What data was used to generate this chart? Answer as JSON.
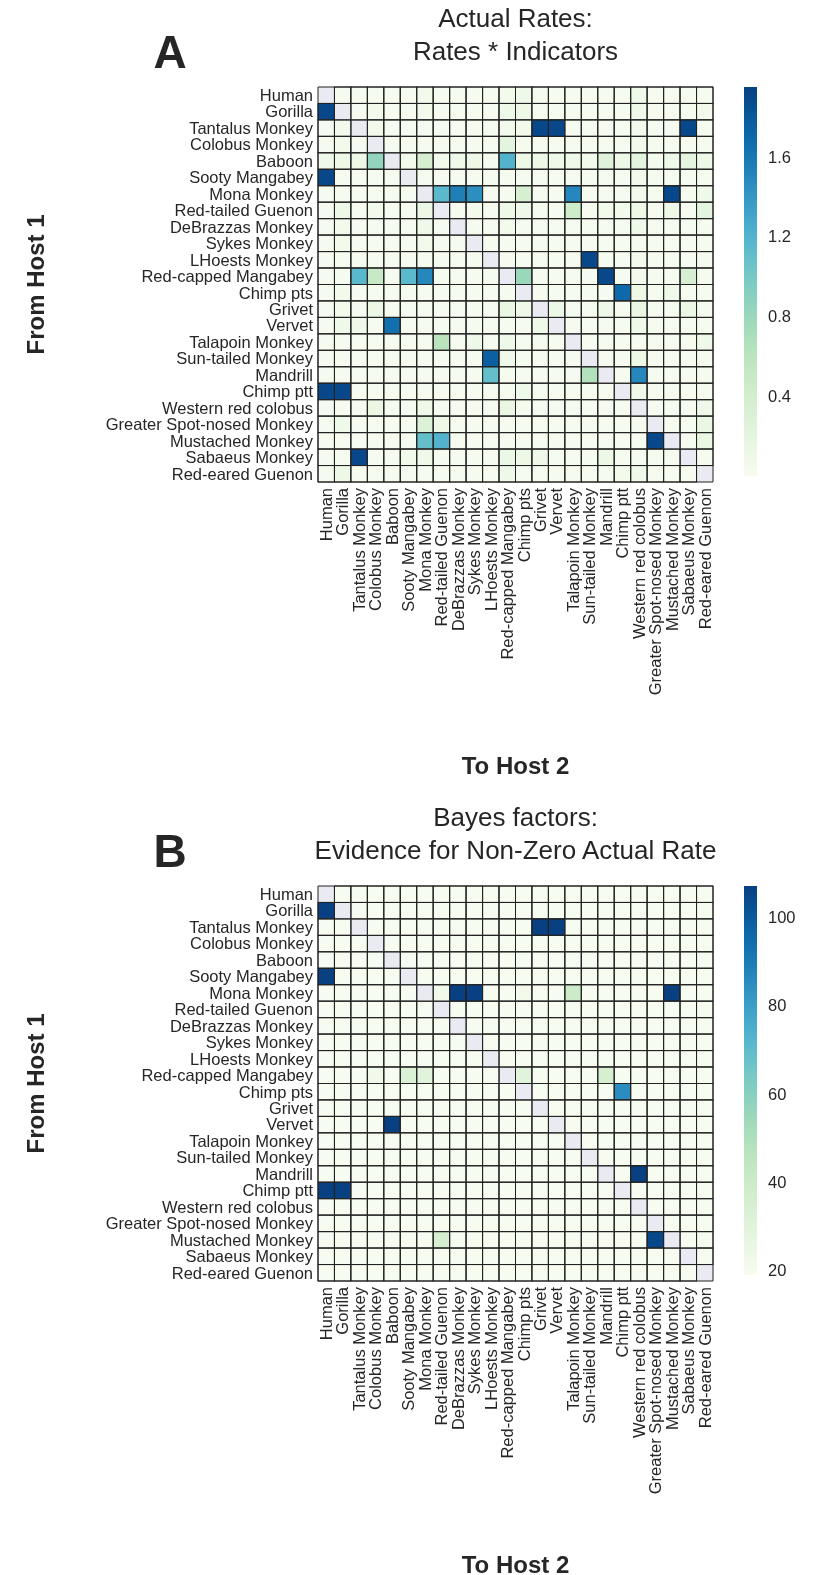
{
  "chart_data": [
    {
      "type": "heatmap",
      "title": "Actual Rates:\nRates * Indicators",
      "xlabel": "To Host 2",
      "ylabel": "From Host 1",
      "annotations": [
        "A"
      ],
      "categories": [
        "Human",
        "Gorilla",
        "Tantalus Monkey",
        "Colobus Monkey",
        "Baboon",
        "Sooty Mangabey",
        "Mona Monkey",
        "Red-tailed Guenon",
        "DeBrazzas Monkey",
        "Sykes Monkey",
        "LHoests Monkey",
        "Red-capped Mangabey",
        "Chimp pts",
        "Grivet",
        "Vervet",
        "Talapoin Monkey",
        "Sun-tailed Monkey",
        "Mandrill",
        "Chimp ptt",
        "Western red colobus",
        "Greater Spot-nosed Monkey",
        "Mustached Monkey",
        "Sabaeus Monkey",
        "Red-eared Guenon"
      ],
      "y_categories": [
        "Human",
        "Gorilla",
        "Tantalus Monkey",
        "Colobus Monkey",
        "Baboon",
        "Sooty Mangabey",
        "Mona Monkey",
        "Red-tailed Guenon",
        "DeBrazzas Monkey",
        "Sykes Monkey",
        "LHoests Monkey",
        "Red-capped Mangabey",
        "Chimp pts",
        "Grivet",
        "Vervet",
        "Talapoin Monkey",
        "Sun-tailed Monkey",
        "Mandrill",
        "Chimp ptt",
        "Western red colobus",
        "Greater Spot-nosed Monkey",
        "Mustached Monkey",
        "Sabaeus Monkey",
        "Red-eared Guenon"
      ],
      "clim": [
        0,
        1.95
      ],
      "cticks": [
        0.4,
        0.8,
        1.2,
        1.6
      ],
      "cells": [
        [
          null,
          0.02,
          0.02,
          0.02,
          0.02,
          0.02,
          0.05,
          0.02,
          0.02,
          0.02,
          0.02,
          0.05,
          0.08,
          0.02,
          0.02,
          0.02,
          0.02,
          0.02,
          0.02,
          0.08,
          0.02,
          0.02,
          0.02,
          0.02
        ],
        [
          1.9,
          null,
          0.02,
          0.05,
          0.02,
          0.02,
          0.05,
          0.02,
          0.02,
          0.02,
          0.02,
          0.08,
          0.1,
          0.02,
          0.02,
          0.02,
          0.02,
          0.02,
          0.02,
          0.08,
          0.02,
          0.02,
          0.02,
          0.05
        ],
        [
          0.02,
          0.05,
          null,
          0.05,
          0.02,
          0.02,
          0.02,
          0.02,
          0.02,
          0.02,
          0.02,
          0.05,
          0.05,
          1.9,
          1.9,
          0.02,
          0.02,
          0.02,
          0.02,
          0.05,
          0.02,
          0.02,
          1.9,
          0.02
        ],
        [
          0.02,
          0.05,
          0.02,
          null,
          0.02,
          0.02,
          0.02,
          0.02,
          0.02,
          0.02,
          0.02,
          0.2,
          0.02,
          0.02,
          0.02,
          0.02,
          0.02,
          0.02,
          0.02,
          0.05,
          0.02,
          0.02,
          0.02,
          0.02
        ],
        [
          0.08,
          0.1,
          0.1,
          0.85,
          null,
          0.05,
          0.35,
          0.05,
          0.08,
          0.1,
          0.02,
          1.2,
          0.1,
          0.1,
          0.08,
          0.08,
          0.05,
          0.25,
          0.1,
          0.2,
          0.02,
          0.08,
          0.2,
          0.1
        ],
        [
          1.9,
          0.02,
          0.02,
          0.02,
          0.02,
          null,
          0.02,
          0.02,
          0.02,
          0.02,
          0.02,
          0.02,
          0.02,
          0.02,
          0.02,
          0.02,
          0.02,
          0.02,
          0.02,
          0.05,
          0.02,
          0.02,
          0.02,
          0.02
        ],
        [
          0.02,
          0.02,
          0.02,
          0.02,
          0.02,
          0.02,
          null,
          1.15,
          1.55,
          1.45,
          0.02,
          0.02,
          0.35,
          0.02,
          0.02,
          1.5,
          0.02,
          0.02,
          0.02,
          0.05,
          0.02,
          1.9,
          0.02,
          0.08
        ],
        [
          0.02,
          0.1,
          0.02,
          0.05,
          0.02,
          0.02,
          0.12,
          null,
          0.02,
          0.05,
          0.02,
          0.1,
          0.08,
          0.02,
          0.02,
          0.45,
          0.02,
          0.05,
          0.05,
          0.1,
          0.02,
          0.1,
          0.02,
          0.2
        ],
        [
          0.02,
          0.05,
          0.02,
          0.02,
          0.02,
          0.02,
          0.08,
          0.02,
          null,
          0.02,
          0.02,
          0.05,
          0.02,
          0.02,
          0.02,
          0.02,
          0.02,
          0.02,
          0.02,
          0.08,
          0.02,
          0.02,
          0.02,
          0.02
        ],
        [
          0.02,
          0.05,
          0.02,
          0.02,
          0.02,
          0.02,
          0.05,
          0.02,
          0.02,
          null,
          0.02,
          0.02,
          0.02,
          0.02,
          0.02,
          0.02,
          0.02,
          0.02,
          0.02,
          0.02,
          0.02,
          0.02,
          0.02,
          0.02
        ],
        [
          0.02,
          0.02,
          0.02,
          0.02,
          0.02,
          0.02,
          0.02,
          0.02,
          0.02,
          0.02,
          null,
          0.02,
          0.02,
          0.02,
          0.02,
          0.02,
          1.9,
          0.02,
          0.02,
          0.05,
          0.02,
          0.02,
          0.02,
          0.02
        ],
        [
          0.02,
          0.02,
          1.15,
          0.5,
          0.02,
          1.15,
          1.5,
          0.02,
          0.02,
          0.02,
          0.02,
          null,
          0.8,
          0.02,
          0.02,
          0.02,
          0.02,
          1.9,
          0.02,
          0.05,
          0.02,
          0.02,
          0.35,
          0.02
        ],
        [
          0.02,
          0.05,
          0.02,
          0.02,
          0.02,
          0.02,
          0.02,
          0.02,
          0.02,
          0.02,
          0.02,
          0.02,
          null,
          0.02,
          0.02,
          0.02,
          0.02,
          0.02,
          1.7,
          0.1,
          0.02,
          0.08,
          0.02,
          0.02
        ],
        [
          0.02,
          0.05,
          0.02,
          0.12,
          0.02,
          0.02,
          0.02,
          0.02,
          0.02,
          0.02,
          0.02,
          0.15,
          0.08,
          null,
          0.12,
          0.02,
          0.02,
          0.08,
          0.02,
          0.15,
          0.02,
          0.02,
          0.12,
          0.02
        ],
        [
          0.02,
          0.08,
          0.08,
          0.02,
          1.65,
          0.02,
          0.02,
          0.02,
          0.02,
          0.02,
          0.02,
          0.02,
          0.02,
          0.08,
          null,
          0.02,
          0.02,
          0.02,
          0.02,
          0.08,
          0.02,
          0.02,
          0.02,
          0.02
        ],
        [
          0.02,
          0.02,
          0.02,
          0.02,
          0.02,
          0.02,
          0.02,
          0.6,
          0.02,
          0.08,
          0.02,
          0.08,
          0.02,
          0.02,
          0.02,
          null,
          0.02,
          0.02,
          0.02,
          0.02,
          0.02,
          0.02,
          0.02,
          0.08
        ],
        [
          0.02,
          0.02,
          0.02,
          0.02,
          0.02,
          0.02,
          0.02,
          0.02,
          0.02,
          0.02,
          1.75,
          0.08,
          0.02,
          0.02,
          0.02,
          0.02,
          null,
          0.02,
          0.02,
          0.1,
          0.02,
          0.02,
          0.02,
          0.02
        ],
        [
          0.02,
          0.02,
          0.02,
          0.02,
          0.02,
          0.02,
          0.02,
          0.02,
          0.02,
          0.02,
          1.1,
          0.02,
          0.02,
          0.02,
          0.02,
          0.02,
          0.65,
          null,
          0.02,
          1.5,
          0.02,
          0.02,
          0.02,
          0.02
        ],
        [
          1.9,
          1.9,
          0.02,
          0.02,
          0.02,
          0.02,
          0.02,
          0.02,
          0.02,
          0.02,
          0.02,
          0.02,
          0.08,
          0.02,
          0.02,
          0.02,
          0.02,
          0.02,
          null,
          0.08,
          0.02,
          0.02,
          0.02,
          0.02
        ],
        [
          0.02,
          0.02,
          0.02,
          0.15,
          0.02,
          0.02,
          0.08,
          0.02,
          0.02,
          0.02,
          0.02,
          0.15,
          0.02,
          0.02,
          0.02,
          0.02,
          0.02,
          0.02,
          0.02,
          null,
          0.02,
          0.02,
          0.02,
          0.08
        ],
        [
          0.02,
          0.08,
          0.02,
          0.02,
          0.02,
          0.02,
          0.3,
          0.1,
          0.02,
          0.02,
          0.02,
          0.02,
          0.02,
          0.02,
          0.02,
          0.02,
          0.02,
          0.02,
          0.02,
          0.02,
          null,
          0.02,
          0.02,
          0.15
        ],
        [
          0.02,
          0.02,
          0.02,
          0.02,
          0.02,
          0.02,
          1.1,
          1.2,
          0.02,
          0.02,
          0.02,
          0.02,
          0.02,
          0.02,
          0.02,
          0.02,
          0.02,
          0.02,
          0.02,
          0.02,
          1.9,
          null,
          0.02,
          0.15
        ],
        [
          0.02,
          0.02,
          1.9,
          0.02,
          0.02,
          0.05,
          0.08,
          0.02,
          0.02,
          0.02,
          0.02,
          0.12,
          0.1,
          0.08,
          0.02,
          0.02,
          0.02,
          0.1,
          0.02,
          0.02,
          0.02,
          0.02,
          null,
          0.02
        ],
        [
          0.02,
          0.1,
          0.02,
          0.02,
          0.02,
          0.02,
          0.02,
          0.02,
          0.02,
          0.02,
          0.02,
          0.08,
          0.02,
          0.02,
          0.02,
          0.02,
          0.02,
          0.02,
          0.05,
          0.08,
          0.02,
          0.02,
          0.02,
          null
        ]
      ]
    },
    {
      "type": "heatmap",
      "title": "Bayes factors:\nEvidence for Non-Zero Actual Rate",
      "xlabel": "To Host 2",
      "ylabel": "From Host 1",
      "annotations": [
        "B"
      ],
      "categories": [
        "Human",
        "Gorilla",
        "Tantalus Monkey",
        "Colobus Monkey",
        "Baboon",
        "Sooty Mangabey",
        "Mona Monkey",
        "Red-tailed Guenon",
        "DeBrazzas Monkey",
        "Sykes Monkey",
        "LHoests Monkey",
        "Red-capped Mangabey",
        "Chimp pts",
        "Grivet",
        "Vervet",
        "Talapoin Monkey",
        "Sun-tailed Monkey",
        "Mandrill",
        "Chimp ptt",
        "Western red colobus",
        "Greater Spot-nosed Monkey",
        "Mustached Monkey",
        "Sabaeus Monkey",
        "Red-eared Guenon"
      ],
      "y_categories": [
        "Human",
        "Gorilla",
        "Tantalus Monkey",
        "Colobus Monkey",
        "Baboon",
        "Sooty Mangabey",
        "Mona Monkey",
        "Red-tailed Guenon",
        "DeBrazzas Monkey",
        "Sykes Monkey",
        "LHoests Monkey",
        "Red-capped Mangabey",
        "Chimp pts",
        "Grivet",
        "Vervet",
        "Talapoin Monkey",
        "Sun-tailed Monkey",
        "Mandrill",
        "Chimp ptt",
        "Western red colobus",
        "Greater Spot-nosed Monkey",
        "Mustached Monkey",
        "Sabaeus Monkey",
        "Red-eared Guenon"
      ],
      "clim": [
        19,
        107
      ],
      "cticks": [
        20,
        40,
        60,
        80,
        100
      ],
      "cells": [
        [
          null,
          19,
          19,
          19,
          19,
          19,
          19,
          19,
          19,
          19,
          19,
          19,
          19,
          19,
          19,
          19,
          19,
          19,
          19,
          19,
          19,
          19,
          19,
          19
        ],
        [
          107,
          null,
          19,
          19,
          19,
          19,
          19,
          19,
          19,
          19,
          19,
          19,
          19,
          19,
          19,
          19,
          19,
          19,
          19,
          19,
          19,
          19,
          19,
          19
        ],
        [
          19,
          19,
          null,
          19,
          19,
          19,
          19,
          19,
          19,
          19,
          19,
          19,
          19,
          107,
          107,
          19,
          19,
          19,
          19,
          19,
          19,
          19,
          20,
          19
        ],
        [
          19,
          19,
          19,
          null,
          19,
          19,
          19,
          19,
          19,
          19,
          19,
          19,
          19,
          19,
          19,
          19,
          19,
          19,
          19,
          19,
          19,
          19,
          19,
          19
        ],
        [
          19,
          19,
          19,
          19,
          null,
          19,
          19,
          19,
          19,
          19,
          19,
          19,
          19,
          19,
          19,
          19,
          19,
          19,
          19,
          19,
          19,
          19,
          19,
          19
        ],
        [
          107,
          19,
          19,
          19,
          19,
          null,
          19,
          19,
          19,
          19,
          19,
          19,
          19,
          19,
          19,
          19,
          19,
          19,
          19,
          19,
          19,
          19,
          19,
          19
        ],
        [
          19,
          19,
          19,
          19,
          19,
          19,
          null,
          22,
          107,
          107,
          19,
          19,
          21,
          19,
          19,
          40,
          19,
          19,
          19,
          19,
          19,
          107,
          19,
          19
        ],
        [
          19,
          19,
          19,
          19,
          19,
          19,
          19,
          null,
          19,
          19,
          19,
          19,
          19,
          19,
          19,
          19,
          19,
          19,
          19,
          19,
          19,
          19,
          19,
          19
        ],
        [
          19,
          19,
          19,
          19,
          19,
          19,
          19,
          19,
          null,
          19,
          19,
          19,
          19,
          19,
          19,
          19,
          19,
          19,
          19,
          19,
          19,
          19,
          19,
          19
        ],
        [
          19,
          19,
          19,
          19,
          19,
          19,
          19,
          19,
          19,
          null,
          19,
          19,
          19,
          19,
          19,
          19,
          19,
          19,
          19,
          19,
          19,
          19,
          19,
          19
        ],
        [
          19,
          19,
          19,
          19,
          19,
          19,
          19,
          19,
          19,
          19,
          null,
          19,
          19,
          19,
          19,
          19,
          19,
          19,
          19,
          19,
          19,
          19,
          19,
          19
        ],
        [
          19,
          19,
          19,
          22,
          19,
          33,
          30,
          19,
          19,
          19,
          19,
          null,
          30,
          19,
          19,
          19,
          19,
          35,
          19,
          19,
          19,
          19,
          19,
          19
        ],
        [
          19,
          19,
          19,
          19,
          19,
          19,
          19,
          19,
          19,
          19,
          19,
          19,
          null,
          19,
          19,
          19,
          19,
          19,
          85,
          19,
          19,
          19,
          19,
          19
        ],
        [
          19,
          19,
          19,
          19,
          19,
          19,
          19,
          19,
          19,
          19,
          19,
          19,
          19,
          null,
          19,
          19,
          19,
          19,
          19,
          19,
          19,
          19,
          19,
          19
        ],
        [
          19,
          19,
          19,
          19,
          107,
          19,
          19,
          19,
          19,
          19,
          19,
          19,
          19,
          19,
          null,
          19,
          19,
          19,
          19,
          19,
          19,
          19,
          19,
          19
        ],
        [
          19,
          19,
          19,
          19,
          19,
          19,
          19,
          19,
          19,
          19,
          19,
          19,
          19,
          19,
          19,
          null,
          19,
          19,
          19,
          19,
          19,
          19,
          19,
          19
        ],
        [
          19,
          19,
          19,
          19,
          19,
          19,
          19,
          19,
          19,
          19,
          19,
          19,
          19,
          19,
          19,
          19,
          null,
          19,
          19,
          19,
          19,
          19,
          19,
          19
        ],
        [
          19,
          19,
          19,
          19,
          19,
          19,
          19,
          19,
          19,
          19,
          19,
          19,
          19,
          19,
          19,
          19,
          19,
          null,
          19,
          107,
          19,
          19,
          19,
          19
        ],
        [
          107,
          107,
          19,
          19,
          19,
          19,
          19,
          19,
          19,
          19,
          19,
          19,
          19,
          19,
          19,
          19,
          19,
          19,
          null,
          19,
          19,
          19,
          19,
          19
        ],
        [
          19,
          19,
          19,
          19,
          19,
          19,
          19,
          19,
          19,
          19,
          19,
          19,
          19,
          19,
          19,
          19,
          19,
          19,
          19,
          null,
          19,
          19,
          19,
          19
        ],
        [
          19,
          19,
          19,
          19,
          19,
          19,
          19,
          19,
          19,
          19,
          19,
          19,
          19,
          19,
          19,
          19,
          19,
          19,
          19,
          19,
          null,
          19,
          19,
          19
        ],
        [
          19,
          19,
          19,
          19,
          19,
          19,
          19,
          35,
          19,
          19,
          19,
          19,
          19,
          19,
          19,
          19,
          19,
          19,
          19,
          19,
          105,
          null,
          19,
          19
        ],
        [
          19,
          19,
          19,
          19,
          19,
          19,
          19,
          19,
          19,
          19,
          19,
          19,
          19,
          19,
          19,
          19,
          19,
          19,
          19,
          19,
          19,
          19,
          null,
          19
        ],
        [
          19,
          19,
          19,
          19,
          19,
          19,
          19,
          19,
          19,
          19,
          19,
          19,
          19,
          19,
          19,
          19,
          19,
          19,
          19,
          19,
          19,
          19,
          19,
          null
        ]
      ]
    }
  ]
}
